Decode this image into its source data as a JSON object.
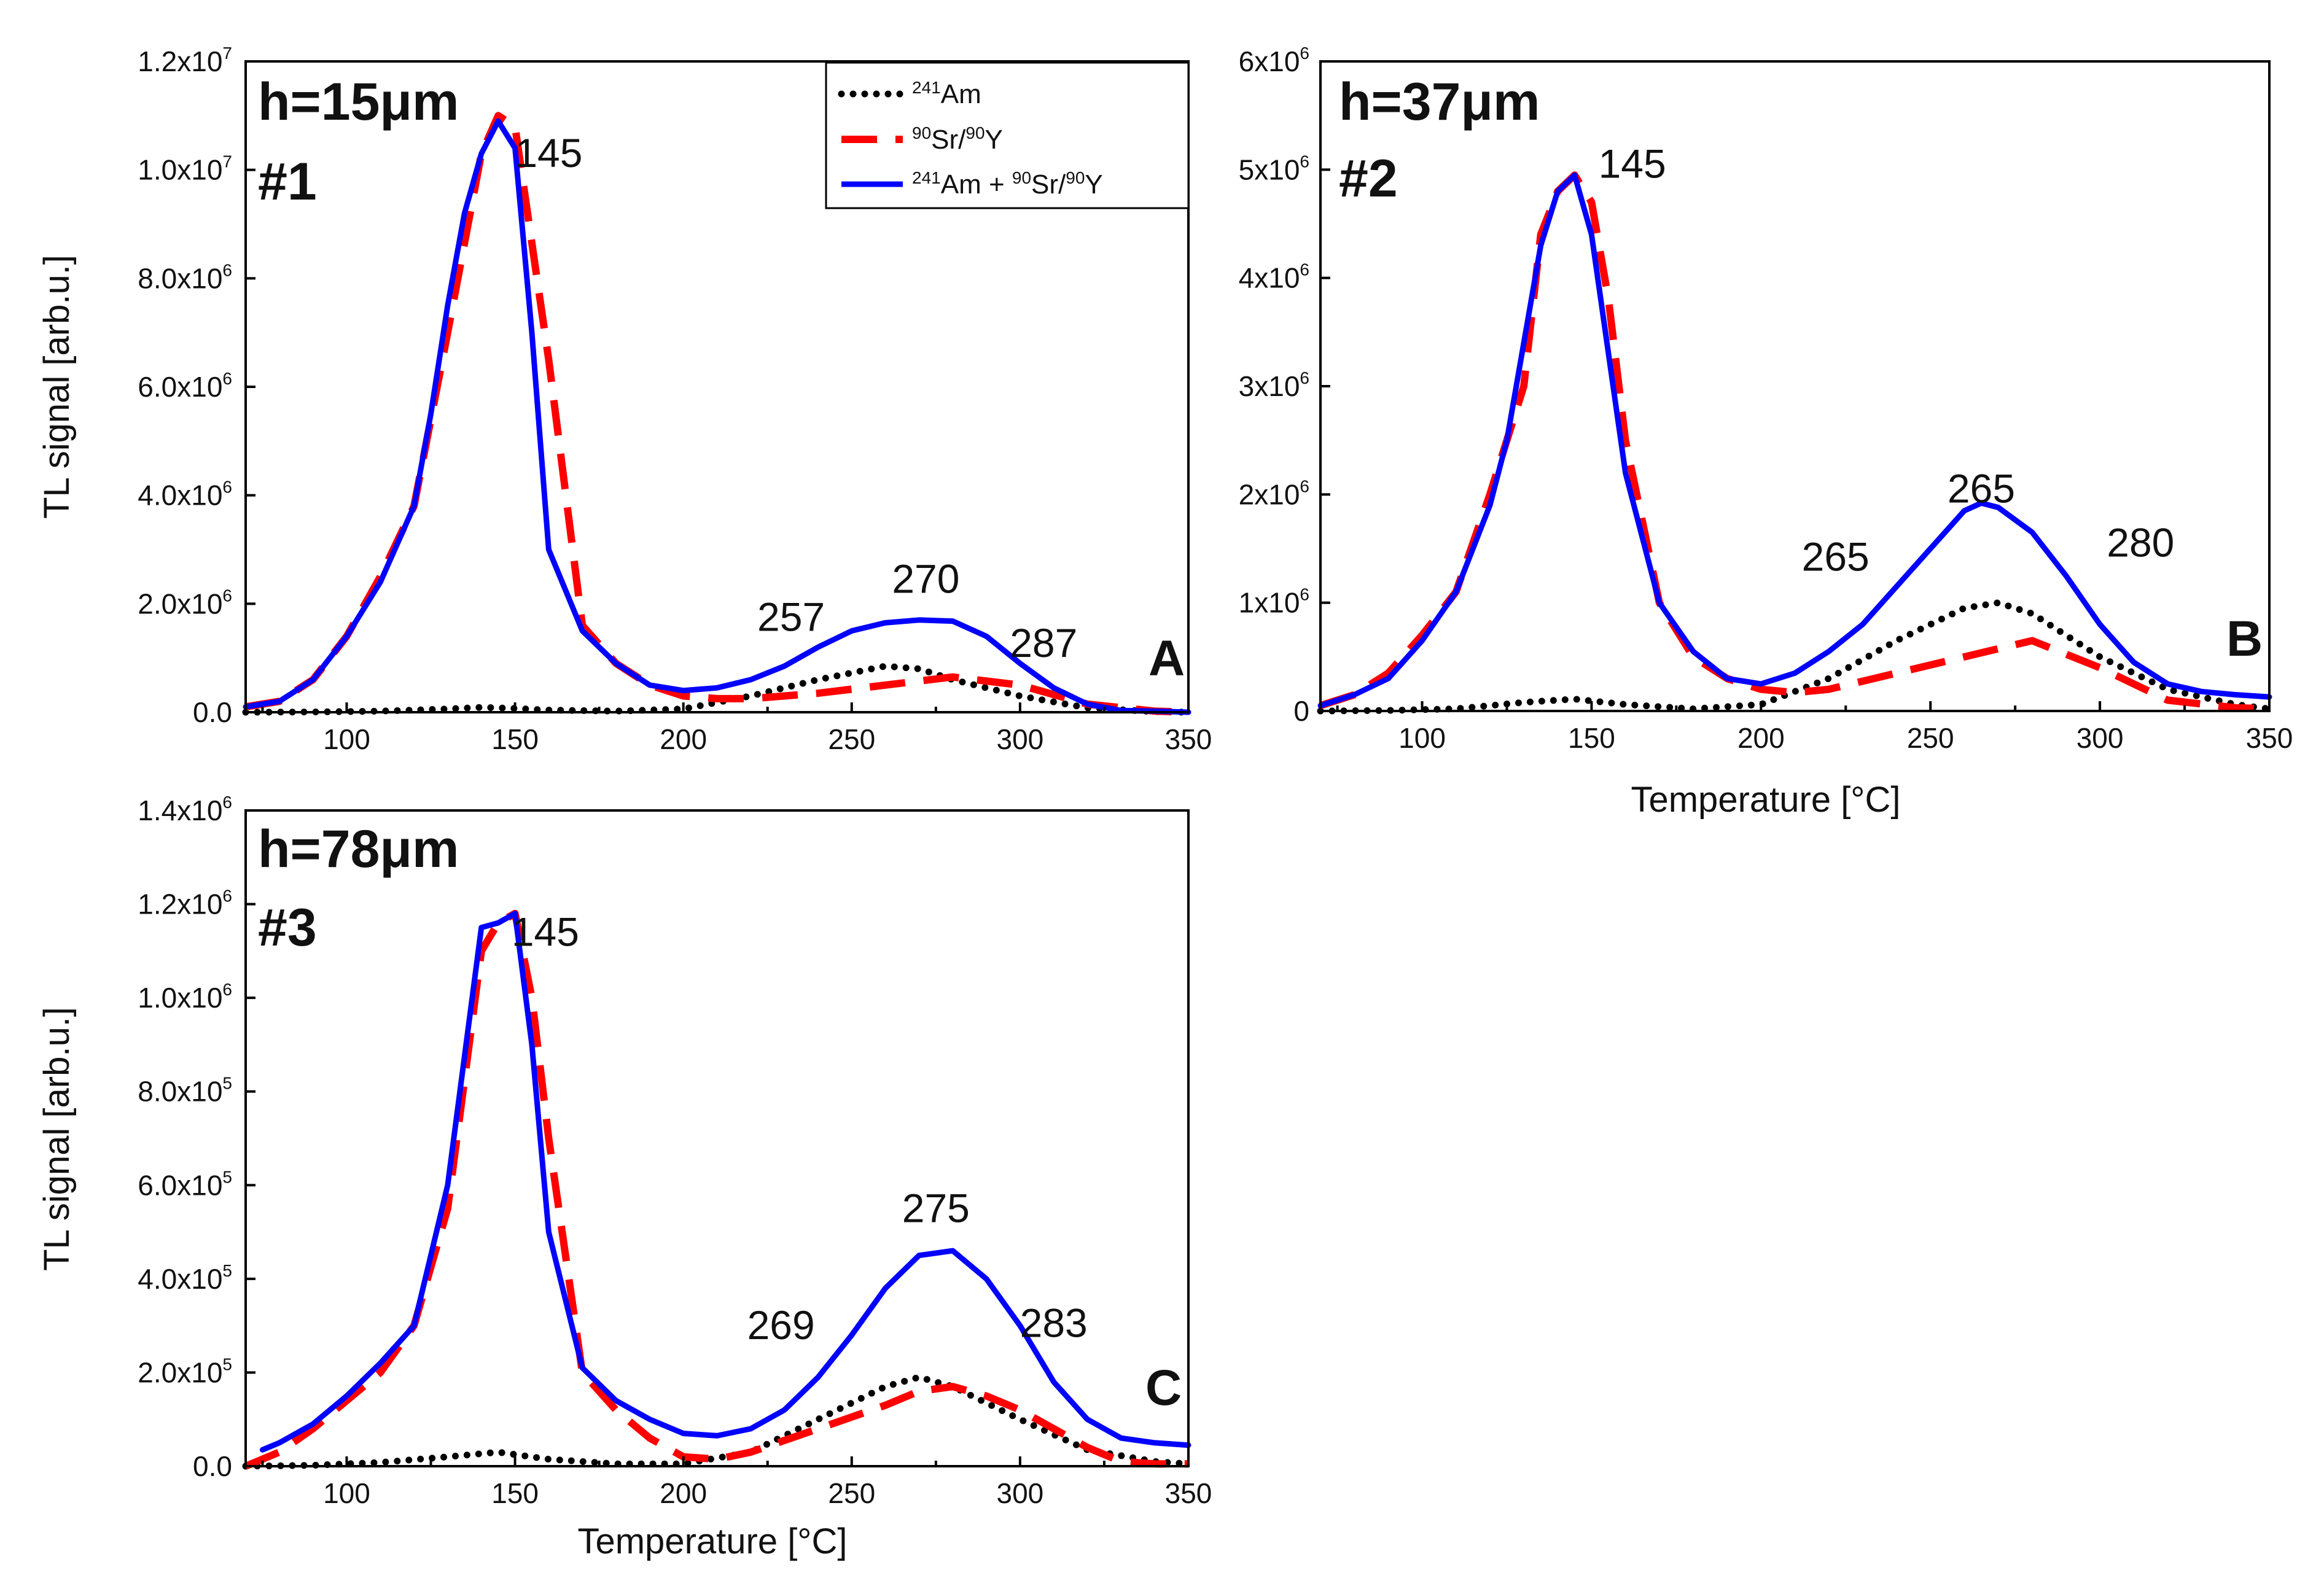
{
  "chart_data": [
    {
      "type": "line",
      "panel_letter": "A",
      "sample_id": "#1",
      "thickness_label": "h=15μm",
      "xlabel": "",
      "ylabel": "TL signal [arb.u.]",
      "xlim": [
        70,
        350
      ],
      "ylim": [
        0,
        12000000
      ],
      "x_ticks": [
        100,
        150,
        200,
        250,
        300,
        350
      ],
      "y_ticks": [
        0,
        2000000,
        4000000,
        6000000,
        8000000,
        10000000,
        12000000
      ],
      "y_tick_labels": [
        "0.0",
        "2.0x10^6",
        "4.0x10^6",
        "6.0x10^6",
        "8.0x10^6",
        "1.0x10^7",
        "1.2x10^7"
      ],
      "peak_labels": [
        {
          "text": "145",
          "x": 160,
          "y": 10300000
        },
        {
          "text": "257",
          "x": 232,
          "y": 1750000
        },
        {
          "text": "270",
          "x": 272,
          "y": 2450000
        },
        {
          "text": "287",
          "x": 307,
          "y": 1270000
        }
      ],
      "legend": {
        "placement": "top-right",
        "entries": [
          {
            "sup1": "241",
            "text1": "Am",
            "sup2": "",
            "text2": "",
            "sup3": "",
            "text3": ""
          },
          {
            "sup1": "90",
            "text1": "Sr/",
            "sup2": "90",
            "text2": "Y",
            "sup3": "",
            "text3": ""
          },
          {
            "sup1": "241",
            "text1": "Am  + ",
            "sup2": "90",
            "text2": "Sr/",
            "sup3": "90",
            "text3": "Y"
          }
        ]
      },
      "series": [
        {
          "name": "241Am",
          "color": "#000000",
          "style": "dotted",
          "x": [
            70,
            90,
            110,
            130,
            140,
            150,
            160,
            180,
            200,
            220,
            240,
            260,
            270,
            280,
            300,
            320,
            340,
            350
          ],
          "y": [
            0,
            5000,
            20000,
            60000,
            90000,
            70000,
            40000,
            20000,
            60000,
            300000,
            600000,
            850000,
            800000,
            600000,
            300000,
            80000,
            10000,
            0
          ]
        },
        {
          "name": "90Sr/90Y",
          "color": "#ff0000",
          "style": "dashed",
          "x": [
            70,
            80,
            90,
            100,
            110,
            120,
            130,
            140,
            145,
            150,
            160,
            170,
            180,
            190,
            200,
            210,
            220,
            240,
            260,
            280,
            300,
            320,
            340,
            350
          ],
          "y": [
            100000,
            200000,
            600000,
            1400000,
            2500000,
            3800000,
            7000000,
            10300000,
            11000000,
            10800000,
            6500000,
            1600000,
            900000,
            500000,
            300000,
            250000,
            250000,
            350000,
            500000,
            650000,
            500000,
            150000,
            20000,
            0
          ]
        },
        {
          "name": "241Am + 90Sr/90Y",
          "color": "#0000ff",
          "style": "solid",
          "x": [
            70,
            80,
            90,
            100,
            110,
            120,
            125,
            130,
            135,
            140,
            145,
            150,
            155,
            160,
            170,
            180,
            190,
            200,
            210,
            220,
            230,
            240,
            250,
            260,
            270,
            280,
            290,
            300,
            310,
            320,
            330,
            340,
            350
          ],
          "y": [
            100000,
            200000,
            600000,
            1400000,
            2400000,
            3800000,
            5500000,
            7500000,
            9200000,
            10300000,
            10900000,
            10400000,
            7000000,
            3000000,
            1500000,
            900000,
            500000,
            400000,
            450000,
            600000,
            850000,
            1200000,
            1500000,
            1650000,
            1700000,
            1680000,
            1400000,
            900000,
            450000,
            150000,
            30000,
            20000,
            0
          ]
        }
      ]
    },
    {
      "type": "line",
      "panel_letter": "B",
      "sample_id": "#2",
      "thickness_label": "h=37μm",
      "xlabel": "Temperature [°C]",
      "ylabel": "",
      "xlim": [
        70,
        350
      ],
      "ylim": [
        0,
        6000000
      ],
      "x_ticks": [
        100,
        150,
        200,
        250,
        300,
        350
      ],
      "y_ticks": [
        0,
        1000000,
        2000000,
        3000000,
        4000000,
        5000000,
        6000000
      ],
      "y_tick_labels": [
        "0",
        "1x10^6",
        "2x10^6",
        "3x10^6",
        "4x10^6",
        "5x10^6",
        "6x10^6"
      ],
      "peak_labels": [
        {
          "text": "145",
          "x": 162,
          "y": 5050000
        },
        {
          "text": "265",
          "x": 222,
          "y": 1420000
        },
        {
          "text": "265",
          "x": 265,
          "y": 2050000
        },
        {
          "text": "280",
          "x": 312,
          "y": 1550000
        }
      ],
      "series": [
        {
          "name": "241Am",
          "color": "#000000",
          "style": "dotted",
          "x": [
            70,
            90,
            110,
            130,
            145,
            160,
            180,
            200,
            220,
            240,
            260,
            270,
            280,
            300,
            320,
            340,
            350
          ],
          "y": [
            0,
            5000,
            20000,
            80000,
            110000,
            60000,
            20000,
            60000,
            300000,
            650000,
            950000,
            1000000,
            900000,
            500000,
            200000,
            60000,
            20000
          ]
        },
        {
          "name": "90Sr/90Y",
          "color": "#ff0000",
          "style": "dashed",
          "x": [
            70,
            80,
            90,
            100,
            110,
            120,
            130,
            135,
            140,
            145,
            150,
            155,
            160,
            170,
            180,
            190,
            200,
            210,
            220,
            240,
            260,
            280,
            300,
            320,
            340,
            350
          ],
          "y": [
            50000,
            150000,
            350000,
            700000,
            1100000,
            2000000,
            3000000,
            4400000,
            4800000,
            4950000,
            4700000,
            3800000,
            2500000,
            1000000,
            500000,
            300000,
            200000,
            170000,
            200000,
            350000,
            500000,
            650000,
            400000,
            100000,
            30000,
            20000
          ]
        },
        {
          "name": "241Am + 90Sr/90Y",
          "color": "#0000ff",
          "style": "solid",
          "x": [
            70,
            80,
            90,
            100,
            110,
            120,
            125,
            130,
            135,
            140,
            145,
            150,
            155,
            160,
            170,
            180,
            190,
            200,
            210,
            220,
            230,
            240,
            250,
            260,
            265,
            270,
            280,
            290,
            300,
            310,
            320,
            330,
            340,
            350
          ],
          "y": [
            50000,
            150000,
            300000,
            650000,
            1100000,
            1900000,
            2500000,
            3400000,
            4300000,
            4800000,
            4950000,
            4400000,
            3300000,
            2200000,
            1000000,
            550000,
            300000,
            250000,
            350000,
            550000,
            800000,
            1150000,
            1500000,
            1850000,
            1920000,
            1880000,
            1650000,
            1250000,
            800000,
            450000,
            250000,
            180000,
            150000,
            130000
          ]
        }
      ]
    },
    {
      "type": "line",
      "panel_letter": "C",
      "sample_id": "#3",
      "thickness_label": "h=78μm",
      "xlabel": "Temperature [°C]",
      "ylabel": "TL signal [arb.u.]",
      "xlim": [
        70,
        350
      ],
      "ylim": [
        0,
        1400000
      ],
      "x_ticks": [
        100,
        150,
        200,
        250,
        300,
        350
      ],
      "y_ticks": [
        0,
        200000,
        400000,
        600000,
        800000,
        1000000,
        1200000,
        1400000
      ],
      "y_tick_labels": [
        "0.0",
        "2.0x10^5",
        "4.0x10^5",
        "6.0x10^5",
        "8.0x10^5",
        "1.0x10^6",
        "1.2x10^6",
        "1.4x10^6"
      ],
      "peak_labels": [
        {
          "text": "145",
          "x": 159,
          "y": 1140000
        },
        {
          "text": "269",
          "x": 229,
          "y": 300000
        },
        {
          "text": "275",
          "x": 275,
          "y": 550000
        },
        {
          "text": "283",
          "x": 310,
          "y": 305000
        }
      ],
      "series": [
        {
          "name": "241Am",
          "color": "#000000",
          "style": "dotted",
          "x": [
            70,
            90,
            110,
            130,
            145,
            160,
            180,
            200,
            220,
            240,
            260,
            270,
            280,
            300,
            320,
            340,
            350
          ],
          "y": [
            0,
            2000,
            8000,
            20000,
            30000,
            15000,
            5000,
            5000,
            30000,
            100000,
            170000,
            190000,
            170000,
            100000,
            35000,
            10000,
            5000
          ]
        },
        {
          "name": "90Sr/90Y",
          "color": "#ff0000",
          "style": "dashed",
          "x": [
            70,
            80,
            90,
            100,
            110,
            120,
            130,
            140,
            145,
            150,
            155,
            160,
            170,
            180,
            190,
            200,
            210,
            220,
            240,
            260,
            270,
            280,
            290,
            300,
            310,
            320,
            330,
            340,
            350
          ],
          "y": [
            0,
            30000,
            80000,
            140000,
            200000,
            300000,
            550000,
            1100000,
            1160000,
            1180000,
            1000000,
            700000,
            200000,
            120000,
            60000,
            20000,
            15000,
            30000,
            80000,
            130000,
            160000,
            170000,
            150000,
            120000,
            80000,
            40000,
            10000,
            5000,
            5000
          ]
        },
        {
          "name": "241Am + 90Sr/90Y",
          "color": "#0000ff",
          "style": "solid",
          "x": [
            75,
            80,
            90,
            100,
            110,
            120,
            130,
            140,
            145,
            150,
            155,
            160,
            170,
            180,
            190,
            200,
            210,
            220,
            230,
            240,
            250,
            260,
            270,
            280,
            290,
            300,
            310,
            320,
            330,
            340,
            350
          ],
          "y": [
            35000,
            50000,
            90000,
            150000,
            220000,
            300000,
            600000,
            1150000,
            1160000,
            1180000,
            900000,
            500000,
            210000,
            140000,
            100000,
            70000,
            65000,
            80000,
            120000,
            190000,
            280000,
            380000,
            450000,
            460000,
            400000,
            300000,
            180000,
            100000,
            60000,
            50000,
            45000
          ]
        }
      ]
    }
  ]
}
